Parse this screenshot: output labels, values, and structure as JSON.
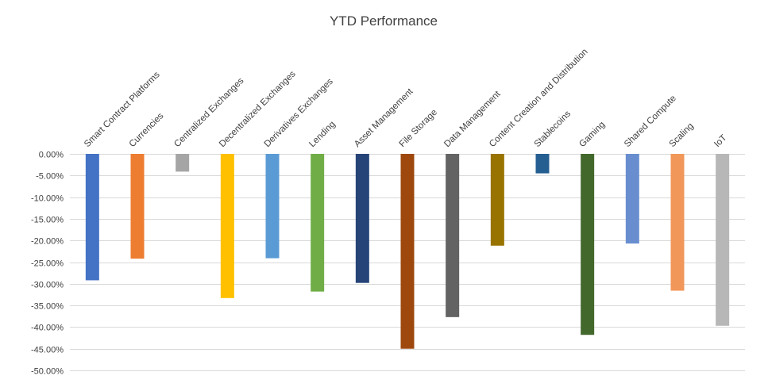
{
  "chart_data": {
    "type": "bar",
    "title": "YTD Performance",
    "xlabel": "",
    "ylabel": "",
    "ylim": [
      -0.5,
      0.0
    ],
    "ytick_step": 0.05,
    "grid": true,
    "legend": "none",
    "categories": [
      "Smart Contract Platforms",
      "Currencies",
      "Centralized Exchanges",
      "Decentralized Exchanges",
      "Derivatives Exchanges",
      "Lending",
      "Asset Management",
      "File Storage",
      "Data Management",
      "Content Creation and Distribution",
      "Stablecoins",
      "Gaming",
      "Shared Compute",
      "Scaling",
      "IoT"
    ],
    "values": [
      -0.292,
      -0.242,
      -0.041,
      -0.333,
      -0.241,
      -0.318,
      -0.298,
      -0.45,
      -0.377,
      -0.212,
      -0.045,
      -0.418,
      -0.207,
      -0.316,
      -0.397
    ],
    "colors": [
      "#4472C4",
      "#ED7D31",
      "#A5A5A5",
      "#FFC000",
      "#5B9BD5",
      "#70AD47",
      "#264478",
      "#9E480E",
      "#636363",
      "#997300",
      "#255E91",
      "#43682B",
      "#698ED0",
      "#F1975A",
      "#B7B7B7"
    ]
  }
}
